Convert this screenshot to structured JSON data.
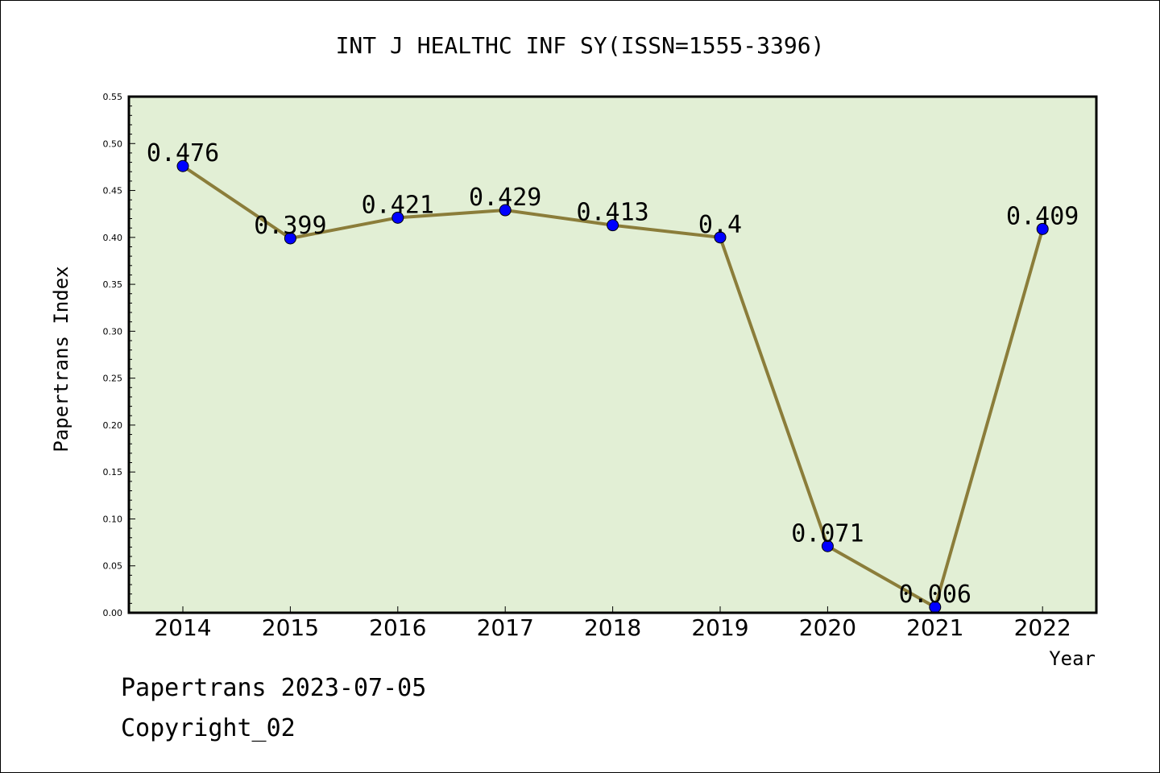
{
  "chart_data": {
    "type": "line",
    "title": "INT J HEALTHC INF SY(ISSN=1555-3396)",
    "xlabel": "Year",
    "ylabel": "Papertrans Index",
    "categories": [
      "2014",
      "2015",
      "2016",
      "2017",
      "2018",
      "2019",
      "2020",
      "2021",
      "2022"
    ],
    "values": [
      0.476,
      0.399,
      0.421,
      0.429,
      0.413,
      0.4,
      0.071,
      0.006,
      0.409
    ],
    "data_labels": [
      "0.476",
      "0.399",
      "0.421",
      "0.429",
      "0.413",
      "0.4",
      "0.071",
      "0.006",
      "0.409"
    ],
    "ylim": [
      0,
      0.55
    ],
    "yticks": [
      "0.00",
      "0.05",
      "0.10",
      "0.15",
      "0.20",
      "0.25",
      "0.30",
      "0.35",
      "0.40",
      "0.45",
      "0.50",
      "0.55"
    ],
    "grid": false,
    "colors": {
      "plot_background": "#e2efd5",
      "line": "#8b7d3a",
      "marker": "#0000ff"
    }
  },
  "footer": {
    "line1": "Papertrans 2023-07-05",
    "line2": "Copyright_02"
  }
}
